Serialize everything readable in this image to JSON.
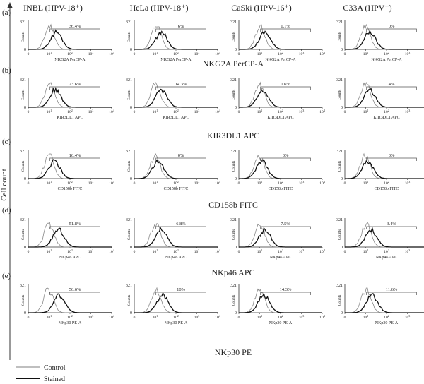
{
  "figure": {
    "y_label": "Cell count",
    "columns": [
      "INBL (HPV-18⁺)",
      "HeLa (HPV-18⁺)",
      "CaSki (HPV-16⁺)",
      "C33A (HPV⁻)"
    ],
    "legend": {
      "control": "Control",
      "stained": "Stained"
    }
  },
  "chart_data": {
    "type": "histogram",
    "y_axis_label": "Counts",
    "y_max_label": "321",
    "x_tick_labels": [
      "0",
      "10",
      "10",
      "10",
      "10"
    ],
    "x_tick_superscripts": [
      "",
      "1",
      "2",
      "3",
      "4"
    ],
    "legend_position": "bottom-left",
    "series_names": [
      "Control",
      "Stained"
    ],
    "rows": [
      {
        "panel": "(a)",
        "marker": "NKG2A PerCP-A",
        "x_label": "NKG2A PerCP-A",
        "gates": [
          "36.4%",
          "6%",
          "1.1%",
          "0%"
        ],
        "control_peak": [
          6,
          7,
          6,
          5
        ],
        "stained_peak": [
          9,
          8,
          7,
          6
        ]
      },
      {
        "panel": "(b)",
        "marker": "KIR3DL1 APC",
        "x_label": "KIR3DL1 APC",
        "gates": [
          "23.6%",
          "14.3%",
          "0.6%",
          "4%"
        ],
        "control_peak": [
          6,
          6,
          5,
          5
        ],
        "stained_peak": [
          8,
          8,
          5,
          6
        ]
      },
      {
        "panel": "(c)",
        "marker": "CD158b FITC",
        "x_label": "CD158b FITC",
        "gates": [
          "16.4%",
          "0%",
          "0%",
          "0%"
        ],
        "control_peak": [
          5,
          5,
          4,
          4
        ],
        "stained_peak": [
          7,
          5,
          4,
          4
        ]
      },
      {
        "panel": "(d)",
        "marker": "NKp46 APC",
        "x_label": "NKp46 APC",
        "gates": [
          "51.8%",
          "6.8%",
          "7.5%",
          "3.4%"
        ],
        "control_peak": [
          5,
          6,
          5,
          6
        ],
        "stained_peak": [
          11,
          8,
          7,
          7
        ]
      },
      {
        "panel": "(e)",
        "marker": "NKp30 PE",
        "x_label": "NKp30 PE-A",
        "gates": [
          "56.6%",
          "10%",
          "14.3%",
          "11.6%"
        ],
        "control_peak": [
          4,
          7,
          5,
          6
        ],
        "stained_peak": [
          12,
          9,
          6,
          8
        ]
      }
    ]
  }
}
